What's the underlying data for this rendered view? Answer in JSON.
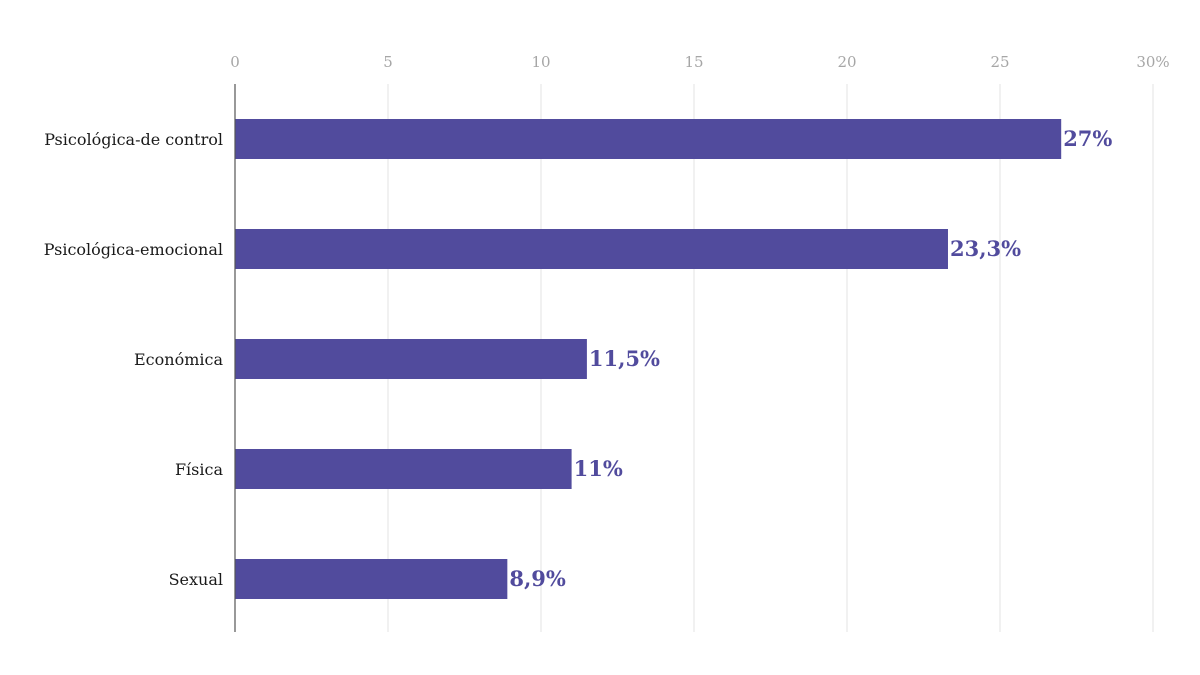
{
  "chart_data": {
    "type": "bar",
    "orientation": "horizontal",
    "categories": [
      "Psicológica-de control",
      "Psicológica-emocional",
      "Económica",
      "Física",
      "Sexual"
    ],
    "values": [
      27,
      23.3,
      11.5,
      11,
      8.9
    ],
    "value_labels": [
      "27%",
      "23,3%",
      "11,5%",
      "11%",
      "8,9%"
    ],
    "xlim": [
      0,
      30
    ],
    "ticks": [
      0,
      5,
      10,
      15,
      20,
      25,
      30
    ],
    "tick_labels": [
      "0",
      "5",
      "10",
      "15",
      "20",
      "25",
      "30%"
    ],
    "tick_position": "top",
    "grid": true,
    "title": "",
    "xlabel": "",
    "ylabel": "",
    "colors": {
      "bar": "#514b9d",
      "value_label": "#514b9d",
      "grid": "#e3e3e3",
      "tick_label": "#a6a6a6",
      "category_label": "#1a1a1a"
    }
  }
}
